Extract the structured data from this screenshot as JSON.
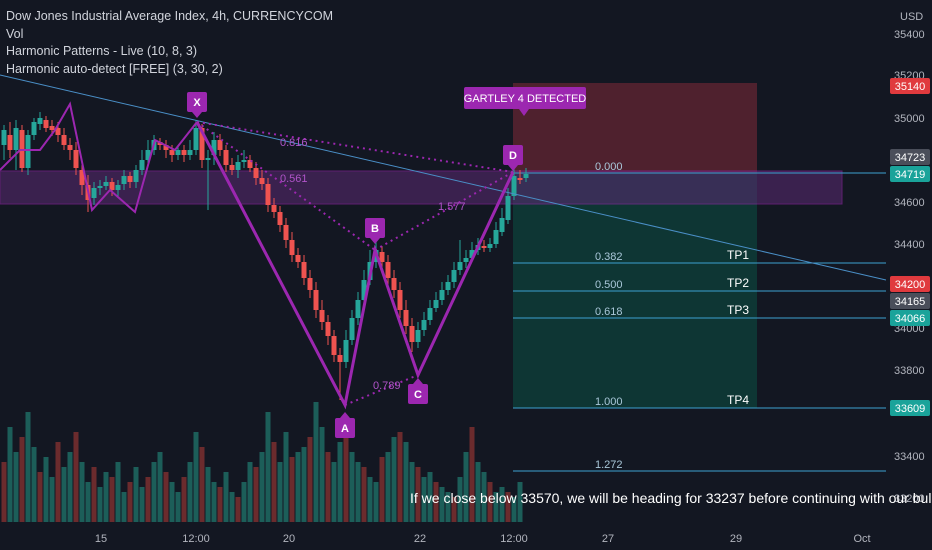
{
  "legend": {
    "title": "Dow Jones Industrial Average Index, 4h, CURRENCYCOM",
    "vol": "Vol",
    "indicator1": "Harmonic Patterns - Live (10, 8, 3)",
    "indicator2": "Harmonic auto-detect [FREE] (3, 30, 2)"
  },
  "price_axis": {
    "currency": "USD",
    "ticks": [
      "35400",
      "35200",
      "35000",
      "34600",
      "34400",
      "34000",
      "33800",
      "33400",
      "33200"
    ],
    "tags": [
      {
        "label": "35140",
        "color": "#e03a3e"
      },
      {
        "label": "34723",
        "color": "#4a4e5a"
      },
      {
        "label": "34719",
        "color": "#1aa39a"
      },
      {
        "label": "34200",
        "color": "#e03a3e"
      },
      {
        "label": "34165",
        "color": "#4a4e5a"
      },
      {
        "label": "34066",
        "color": "#1aa39a"
      },
      {
        "label": "33609",
        "color": "#1aa39a"
      }
    ]
  },
  "time_axis": [
    "15",
    "12:00",
    "20",
    "22",
    "12:00",
    "27",
    "29",
    "Oct"
  ],
  "pattern": {
    "banner": "GARTLEY 4 DETECTED",
    "points": [
      "X",
      "A",
      "B",
      "C",
      "D"
    ],
    "ratios": [
      "0.816",
      "0.561",
      "1.577",
      "0.789"
    ]
  },
  "fib_levels": [
    {
      "ratio": "0.000"
    },
    {
      "ratio": "0.382",
      "tp": "TP1"
    },
    {
      "ratio": "0.500",
      "tp": "TP2"
    },
    {
      "ratio": "0.618",
      "tp": "TP3"
    },
    {
      "ratio": "1.000",
      "tp": "TP4"
    },
    {
      "ratio": "1.272"
    }
  ],
  "annotation": "If we close below 33570, we will be heading for 33237 before continuing with our bul",
  "colors": {
    "bull": "#26a69a",
    "bear": "#ef5350",
    "pattern": "#9c27b0",
    "fib": "#3ca0d0"
  }
}
